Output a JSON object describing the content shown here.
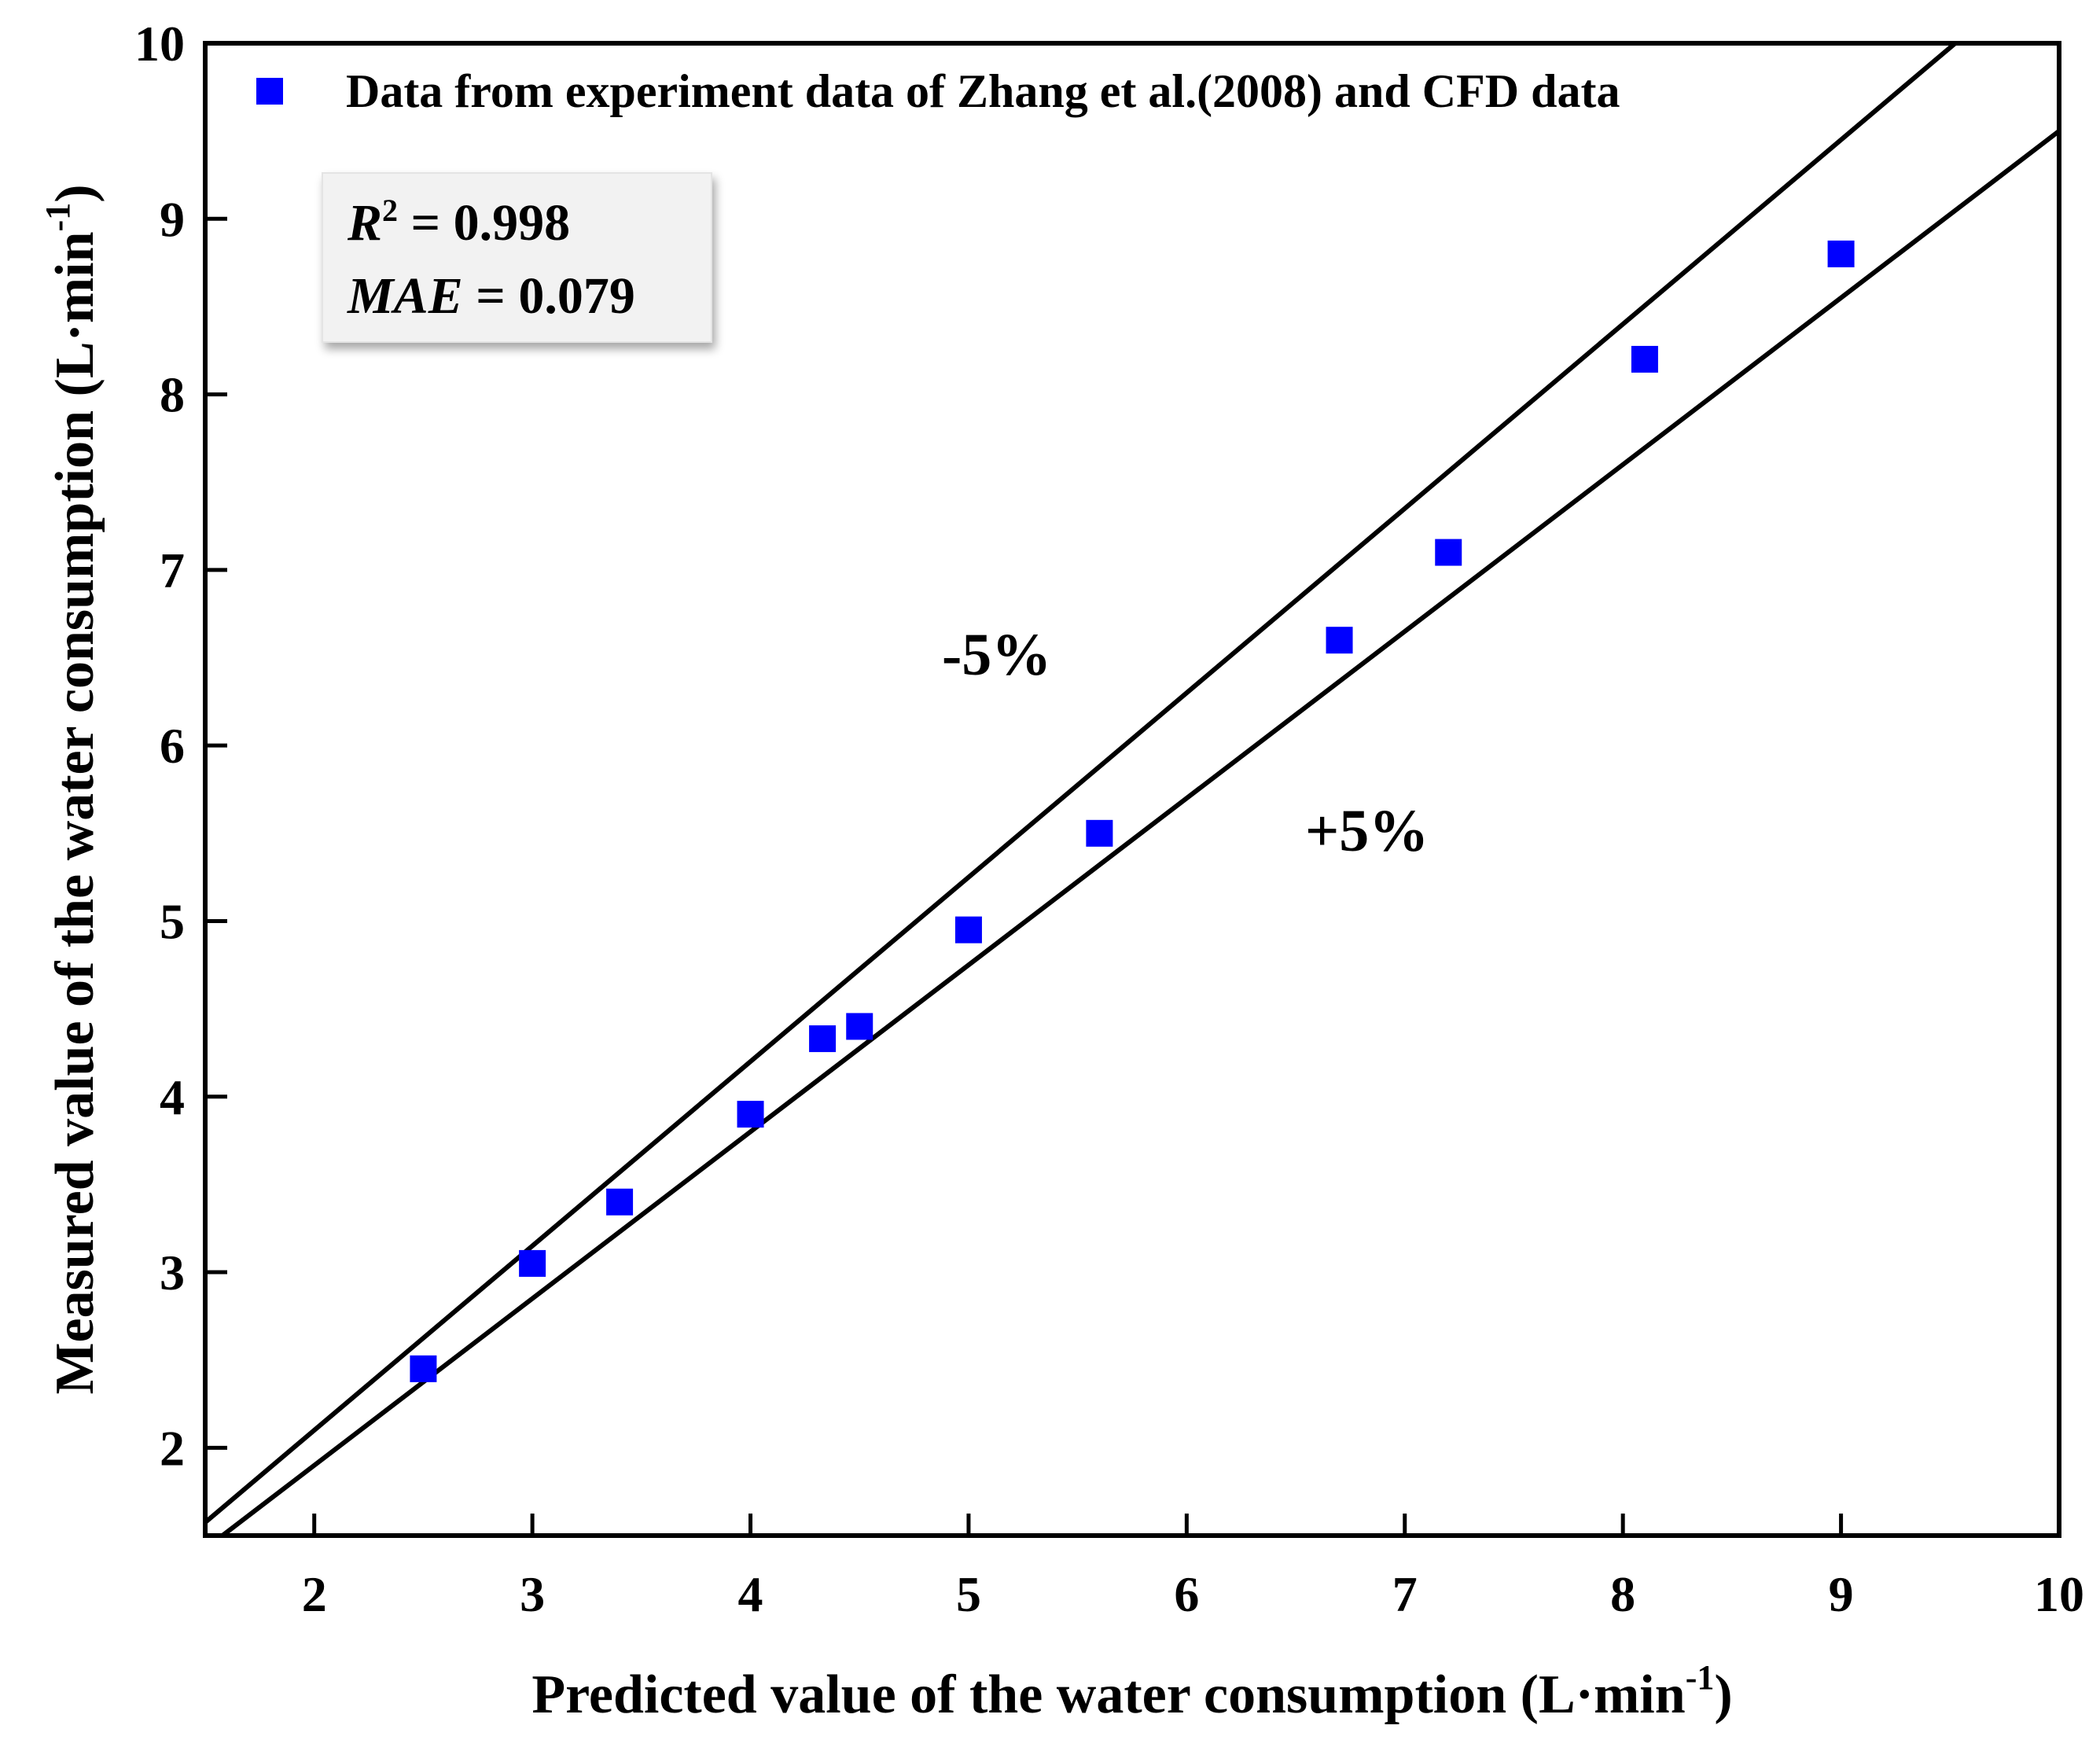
{
  "chart_data": {
    "type": "scatter",
    "title": "",
    "xlabel": "Predicted value of the water consumption (L·min",
    "ylabel": "Measured value of the water consumption (L·min",
    "unit_exponent": "-1",
    "xlim": [
      1.5,
      10
    ],
    "ylim": [
      1.5,
      10
    ],
    "x_ticks": [
      "2",
      "3",
      "4",
      "5",
      "6",
      "7",
      "8",
      "9",
      "10"
    ],
    "y_ticks": [
      "2",
      "3",
      "4",
      "5",
      "6",
      "7",
      "8",
      "9",
      "10"
    ],
    "series": [
      {
        "name": "Data from experiment data of Zhang et al.(2008) and CFD data",
        "marker": "square",
        "color": "#0000ff",
        "x": [
          2.5,
          3.0,
          3.4,
          4.0,
          4.33,
          4.5,
          5.0,
          5.6,
          6.7,
          7.2,
          8.1,
          9.0
        ],
        "y": [
          2.45,
          3.05,
          3.4,
          3.9,
          4.33,
          4.4,
          4.95,
          5.5,
          6.6,
          7.1,
          8.2,
          8.8
        ]
      }
    ],
    "reference_lines": [
      {
        "label": "-5%",
        "slope": 1.05
      },
      {
        "label": "+5%",
        "slope": 0.95
      }
    ],
    "stats": {
      "r2_label": "R",
      "r2_sup": "2",
      "r2_value": " = 0.998",
      "mae_label": "MAE",
      "mae_value": " = 0.079"
    },
    "legend_position": "top-left"
  }
}
